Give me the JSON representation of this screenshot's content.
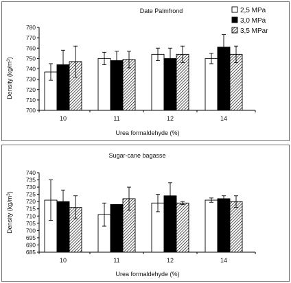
{
  "colors": {
    "white": "#ffffff",
    "black": "#000000",
    "hatch": "#000000"
  },
  "chart_data": [
    {
      "type": "bar",
      "title": "Date Palmfrond",
      "xlabel": "Urea formaldehyde (%)",
      "ylabel": "Density (kg/m3)",
      "ylabel_parts": {
        "main": "Density (kg/m",
        "sup": "3",
        "close": ")"
      },
      "categories": [
        "10",
        "11",
        "12",
        "14"
      ],
      "ylim": [
        700,
        780
      ],
      "yticks": [
        "700",
        "710",
        "720",
        "730",
        "740",
        "750",
        "760",
        "770",
        "780"
      ],
      "series": [
        {
          "name": "2,5 MPa",
          "fill": "white",
          "values": [
            737,
            750,
            754,
            750
          ],
          "errors": [
            8,
            6,
            6,
            5
          ]
        },
        {
          "name": "3,0  MPa",
          "fill": "black",
          "values": [
            744,
            748,
            750,
            761
          ],
          "errors": [
            14,
            9,
            10,
            12
          ]
        },
        {
          "name": "3,5 MPar",
          "fill": "hatch",
          "values": [
            747,
            749,
            754,
            754
          ],
          "errors": [
            15,
            8,
            8,
            8
          ]
        }
      ],
      "legend": "top-right",
      "grid": false
    },
    {
      "type": "bar",
      "title": "Sugar-cane bagasse",
      "xlabel": "Urea formaldehyde (%)",
      "ylabel": "Density (kg/m3)",
      "ylabel_parts": {
        "main": "Density (kg/m",
        "sup": "3",
        "close": ")"
      },
      "categories": [
        "10",
        "11",
        "12",
        "14"
      ],
      "ylim": [
        685,
        740
      ],
      "yticks": [
        "685",
        "690",
        "695",
        "700",
        "705",
        "710",
        "715",
        "720",
        "725",
        "730",
        "735",
        "740"
      ],
      "series": [
        {
          "name": "2,5 MPa",
          "fill": "white",
          "values": [
            721,
            711,
            719,
            721
          ],
          "errors": [
            14,
            8,
            6,
            1.5
          ]
        },
        {
          "name": "3,0  MPa",
          "fill": "black",
          "values": [
            720,
            718,
            724,
            722
          ],
          "errors": [
            8,
            0,
            9,
            2
          ]
        },
        {
          "name": "3,5 MPar",
          "fill": "hatch",
          "values": [
            716,
            722,
            719,
            720
          ],
          "errors": [
            8,
            8,
            1,
            4
          ]
        }
      ],
      "legend": "none",
      "grid": false
    }
  ]
}
